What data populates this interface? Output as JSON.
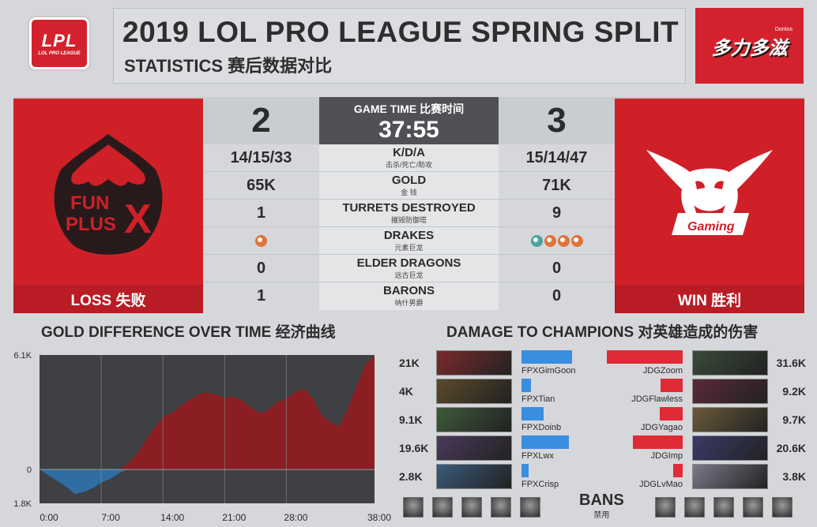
{
  "header": {
    "league_logo": "LPL",
    "league_logo_sub": "LOL PRO LEAGUE",
    "title": "2019 LOL PRO LEAGUE SPRING SPLIT",
    "subtitle": "STATISTICS 赛后数据对比",
    "sponsor_name": "多力多滋",
    "sponsor_tag": "Doritos"
  },
  "teams": {
    "left": {
      "logo": "FUN PLUS X",
      "result": "LOSS 失败",
      "color": "#cf2028"
    },
    "right": {
      "logo": "JD Gaming",
      "result": "WIN  胜利",
      "color": "#cf2028"
    }
  },
  "score": {
    "left": "2",
    "right": "3"
  },
  "game_time": {
    "label": "GAME TIME  比赛时间",
    "value": "37:55"
  },
  "stats": [
    {
      "en": "K/D/A",
      "cn": "击杀/死亡/助攻",
      "left": "14/15/33",
      "right": "15/14/47"
    },
    {
      "en": "GOLD",
      "cn": "金 钱",
      "left": "65K",
      "right": "71K"
    },
    {
      "en": "TURRETS DESTROYED",
      "cn": "摧毁防御塔",
      "left": "1",
      "right": "9"
    },
    {
      "en": "DRAKES",
      "cn": "元素巨龙",
      "left": "",
      "right": ""
    },
    {
      "en": "ELDER DRAGONS",
      "cn": "远古巨龙",
      "left": "0",
      "right": "0"
    },
    {
      "en": "BARONS",
      "cn": "纳什男爵",
      "left": "1",
      "right": "0"
    }
  ],
  "drakes": {
    "left": [
      "infernal-drake-icon"
    ],
    "right": [
      "ocean-drake-icon",
      "infernal-drake-icon",
      "infernal-drake-icon",
      "infernal-drake-icon"
    ],
    "colors": {
      "infernal": "#e0743a",
      "ocean": "#4aa3a0"
    }
  },
  "gold_section": {
    "title": "GOLD DIFFERENCE OVER TIME  经济曲线"
  },
  "chart_data": {
    "type": "area",
    "title": "GOLD DIFFERENCE OVER TIME  经济曲线",
    "ytick_labels": [
      "6.1K",
      "0",
      "1.8K"
    ],
    "xtick_labels": [
      "0:00",
      "7:00",
      "14:00",
      "21:00",
      "28:00",
      "38:00"
    ],
    "ylim": [
      -1.8,
      6.1
    ],
    "xlim": [
      0,
      38
    ],
    "x": [
      0,
      1,
      2,
      3,
      4,
      5,
      6,
      7,
      8,
      9,
      10,
      11,
      12,
      13,
      14,
      15,
      16,
      17,
      18,
      19,
      20,
      21,
      22,
      23,
      24,
      25,
      26,
      27,
      28,
      29,
      30,
      31,
      32,
      33,
      34,
      35,
      36,
      37,
      38
    ],
    "values": [
      0,
      -0.3,
      -0.6,
      -0.9,
      -1.3,
      -1.2,
      -1.0,
      -0.7,
      -0.5,
      -0.2,
      0.3,
      0.8,
      1.5,
      2.2,
      2.8,
      3.0,
      3.4,
      3.7,
      4.0,
      4.1,
      4.0,
      3.8,
      3.9,
      3.7,
      3.3,
      3.0,
      3.2,
      3.6,
      3.8,
      4.1,
      4.3,
      3.8,
      2.9,
      2.5,
      2.3,
      3.3,
      4.5,
      5.6,
      6.1
    ],
    "colors": {
      "positive": "#8a1e22",
      "negative": "#2f6da3",
      "background": "#3e4043"
    }
  },
  "damage_section": {
    "title": "DAMAGE TO CHAMPIONS  对英雄造成的伤害",
    "max": 31.6,
    "left": [
      {
        "player": "FPXGimGoon",
        "value_label": "21K",
        "value": 21.0,
        "champion": "vladimir-portrait"
      },
      {
        "player": "FPXTian",
        "value_label": "4K",
        "value": 4.0,
        "champion": "xin-zhao-portrait"
      },
      {
        "player": "FPXDoinb",
        "value_label": "9.1K",
        "value": 9.1,
        "champion": "ryze-portrait"
      },
      {
        "player": "FPXLwx",
        "value_label": "19.6K",
        "value": 19.6,
        "champion": "kaisa-portrait"
      },
      {
        "player": "FPXCrisp",
        "value_label": "2.8K",
        "value": 2.8,
        "champion": "tahm-kench-portrait"
      }
    ],
    "right": [
      {
        "player": "JDGZoom",
        "value_label": "31.6K",
        "value": 31.6,
        "champion": "ornn-portrait"
      },
      {
        "player": "JDGFlawless",
        "value_label": "9.2K",
        "value": 9.2,
        "champion": "elise-portrait"
      },
      {
        "player": "JDGYagao",
        "value_label": "9.7K",
        "value": 9.7,
        "champion": "lux-portrait"
      },
      {
        "player": "JDGImp",
        "value_label": "20.6K",
        "value": 20.6,
        "champion": "kaisa-portrait"
      },
      {
        "player": "JDGLvMao",
        "value_label": "3.8K",
        "value": 3.8,
        "champion": "galio-portrait"
      }
    ]
  },
  "bans": {
    "label_en": "BANS",
    "label_cn": "禁用",
    "left": [
      "ban-1-portrait",
      "ban-2-portrait",
      "ban-3-portrait",
      "ban-4-portrait",
      "ban-5-portrait"
    ],
    "right": [
      "ban-6-portrait",
      "ban-7-portrait",
      "ban-8-portrait",
      "ban-9-portrait",
      "ban-10-portrait"
    ]
  }
}
